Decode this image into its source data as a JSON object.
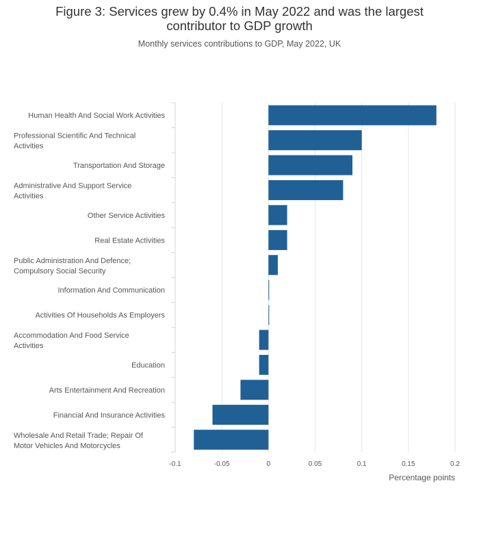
{
  "title": "Figure 3: Services grew by 0.4% in May 2022 and was the largest contributor to GDP growth",
  "title_lines": [
    "Figure 3: Services grew by 0.4% in May 2022 and was the largest",
    "contributor to GDP growth"
  ],
  "subtitle": "Monthly services contributions to GDP, May 2022, UK",
  "chart_data": {
    "type": "bar",
    "orientation": "horizontal",
    "title": "Figure 3: Services grew by 0.4% in May 2022 and was the largest contributor to GDP growth",
    "subtitle": "Monthly services contributions to GDP, May 2022, UK",
    "xlabel": "Percentage points",
    "ylabel": "",
    "xlim": [
      -0.1,
      0.2
    ],
    "xticks": [
      -0.1,
      -0.05,
      0,
      0.05,
      0.1,
      0.15,
      0.2
    ],
    "xtick_labels": [
      "-0.1",
      "-0.05",
      "0",
      "0.05",
      "0.1",
      "0.15",
      "0.2"
    ],
    "grid": true,
    "bar_color": "#206095",
    "categories": [
      "Human Health And Social Work Activities",
      "Professional Scientific And Technical Activities",
      "Transportation And Storage",
      "Administrative And Support Service Activities",
      "Other Service Activities",
      "Real Estate Activities",
      "Public Administration And Defence; Compulsory Social Security",
      "Information And Communication",
      "Activities Of Households As Employers",
      "Accommodation And Food Service Activities",
      "Education",
      "Arts Entertainment And Recreation",
      "Financial And Insurance Activities",
      "Wholesale And Retail Trade; Repair Of Motor Vehicles And Motorcycles"
    ],
    "category_label_lines": [
      [
        "Human Health And Social Work Activities"
      ],
      [
        "Professional Scientific And Technical",
        "Activities"
      ],
      [
        "Transportation And Storage"
      ],
      [
        "Administrative And Support Service",
        "Activities"
      ],
      [
        "Other Service Activities"
      ],
      [
        "Real Estate Activities"
      ],
      [
        "Public Administration And Defence;",
        "Compulsory Social Security"
      ],
      [
        "Information And Communication"
      ],
      [
        "Activities Of Households As Employers"
      ],
      [
        "Accommodation And Food Service",
        "Activities"
      ],
      [
        "Education"
      ],
      [
        "Arts Entertainment And Recreation"
      ],
      [
        "Financial And Insurance Activities"
      ],
      [
        "Wholesale And Retail Trade; Repair Of",
        "Motor Vehicles And Motorcycles"
      ]
    ],
    "values": [
      0.18,
      0.1,
      0.09,
      0.08,
      0.02,
      0.02,
      0.01,
      0.0005,
      0.0005,
      -0.01,
      -0.01,
      -0.03,
      -0.06,
      -0.08
    ]
  }
}
